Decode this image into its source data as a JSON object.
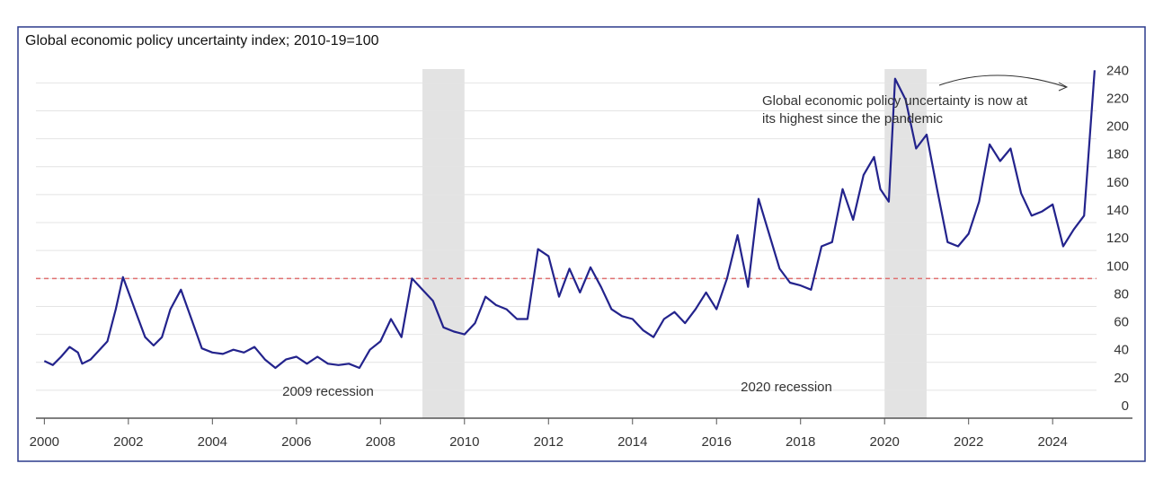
{
  "chart_data": {
    "type": "line",
    "title": "Global economic policy uncertainty index; 2010-19=100",
    "annotation_lines": [
      "Global economic policy uncertainty is now at",
      "its highest since the pandemic"
    ],
    "recessions": [
      {
        "label": "2009 recession",
        "start": 2009,
        "end": 2010
      },
      {
        "label": "2020 recession",
        "start": 2020,
        "end": 2021
      }
    ],
    "reference_line": {
      "value": 100,
      "color": "#e07070"
    },
    "band_color": "#e3e3e3",
    "grid": true,
    "xlim": [
      1999.8,
      2025.9
    ],
    "xticks": [
      2000,
      2002,
      2004,
      2006,
      2008,
      2010,
      2012,
      2014,
      2016,
      2018,
      2020,
      2022,
      2024
    ],
    "ylim": [
      0,
      255
    ],
    "yticks": [
      0,
      20,
      40,
      60,
      80,
      100,
      120,
      140,
      160,
      180,
      200,
      220,
      240
    ],
    "series": [
      {
        "color": "#23238c",
        "x": [
          2000.0,
          2000.2,
          2000.4,
          2000.6,
          2000.8,
          2000.9,
          2001.1,
          2001.5,
          2001.7,
          2001.87,
          2002.2,
          2002.4,
          2002.6,
          2002.8,
          2003.0,
          2003.25,
          2003.5,
          2003.75,
          2004.0,
          2004.25,
          2004.5,
          2004.75,
          2005.0,
          2005.25,
          2005.5,
          2005.75,
          2006.0,
          2006.25,
          2006.5,
          2006.75,
          2007.0,
          2007.25,
          2007.5,
          2007.75,
          2008.0,
          2008.25,
          2008.5,
          2008.75,
          2009.0,
          2009.25,
          2009.5,
          2009.75,
          2010.0,
          2010.25,
          2010.5,
          2010.75,
          2011.0,
          2011.25,
          2011.5,
          2011.75,
          2012.0,
          2012.25,
          2012.5,
          2012.75,
          2013.0,
          2013.25,
          2013.5,
          2013.75,
          2014.0,
          2014.25,
          2014.5,
          2014.75,
          2015.0,
          2015.25,
          2015.5,
          2015.75,
          2016.0,
          2016.25,
          2016.5,
          2016.75,
          2017.0,
          2017.25,
          2017.5,
          2017.75,
          2018.0,
          2018.25,
          2018.5,
          2018.75,
          2019.0,
          2019.25,
          2019.5,
          2019.75,
          2019.9,
          2020.1,
          2020.25,
          2020.5,
          2020.75,
          2021.0,
          2021.25,
          2021.5,
          2021.75,
          2022.0,
          2022.25,
          2022.5,
          2022.75,
          2023.0,
          2023.25,
          2023.5,
          2023.75,
          2024.0,
          2024.25,
          2024.5,
          2024.75,
          2025.0
        ],
        "values": [
          41,
          38,
          44,
          51,
          47,
          39,
          42,
          55,
          78,
          101,
          74,
          58,
          52,
          58,
          78,
          92,
          71,
          50,
          47,
          46,
          49,
          47,
          51,
          42,
          36,
          42,
          44,
          39,
          44,
          39,
          38,
          39,
          36,
          49,
          55,
          71,
          58,
          100,
          92,
          84,
          65,
          62,
          60,
          68,
          87,
          81,
          78,
          71,
          71,
          121,
          116,
          87,
          107,
          90,
          108,
          94,
          78,
          73,
          71,
          63,
          58,
          71,
          76,
          68,
          78,
          90,
          78,
          100,
          131,
          94,
          157,
          132,
          107,
          97,
          95,
          92,
          123,
          126,
          164,
          142,
          174,
          187,
          164,
          155,
          243,
          228,
          193,
          203,
          164,
          126,
          123,
          132,
          155,
          196,
          184,
          193,
          161,
          145,
          148,
          153,
          123,
          135,
          145,
          249
        ]
      }
    ]
  }
}
